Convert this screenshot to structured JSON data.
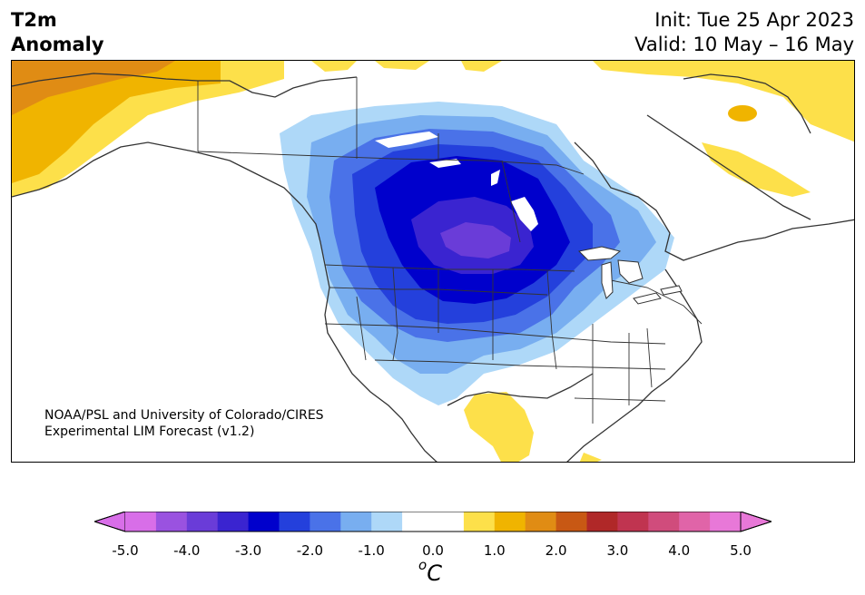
{
  "header": {
    "title_line1": "T2m",
    "title_line2": "Anomaly",
    "init": "Init: Tue 25 Apr 2023",
    "valid": "Valid: 10 May – 16 May"
  },
  "credit": {
    "line1": "NOAA/PSL and University of Colorado/CIRES",
    "line2": "Experimental LIM Forecast (v1.2)"
  },
  "colorbar": {
    "unit_base": "C",
    "unit_sup": "o",
    "tick_labels": [
      "-5.0",
      "-4.0",
      "-3.0",
      "-2.0",
      "-1.0",
      "0.0",
      "1.0",
      "2.0",
      "3.0",
      "4.0",
      "5.0"
    ],
    "colors": [
      "#d86ee8",
      "#9a52e0",
      "#6a3cd8",
      "#3a24d0",
      "#0000cc",
      "#2440dc",
      "#4a72e8",
      "#78aef0",
      "#aed8f8",
      "#ffffff",
      "#ffffff",
      "#fde04a",
      "#f0b400",
      "#e08c14",
      "#c85814",
      "#b02828",
      "#c03450",
      "#d04c7c",
      "#e064a8",
      "#e878d8"
    ],
    "under_color": "#d86ee8",
    "over_color": "#e878d8"
  },
  "map": {
    "region": "North America",
    "colors": {
      "cold_1": "#aed8f8",
      "cold_2": "#78aef0",
      "cold_3": "#4a72e8",
      "cold_4": "#2440dc",
      "cold_5": "#0000cc",
      "cold_6": "#3a24d0",
      "cold_7": "#6a3cd8",
      "warm_1": "#fde04a",
      "warm_2": "#f0b400",
      "warm_3": "#e08c14",
      "coast": "#333333"
    }
  }
}
